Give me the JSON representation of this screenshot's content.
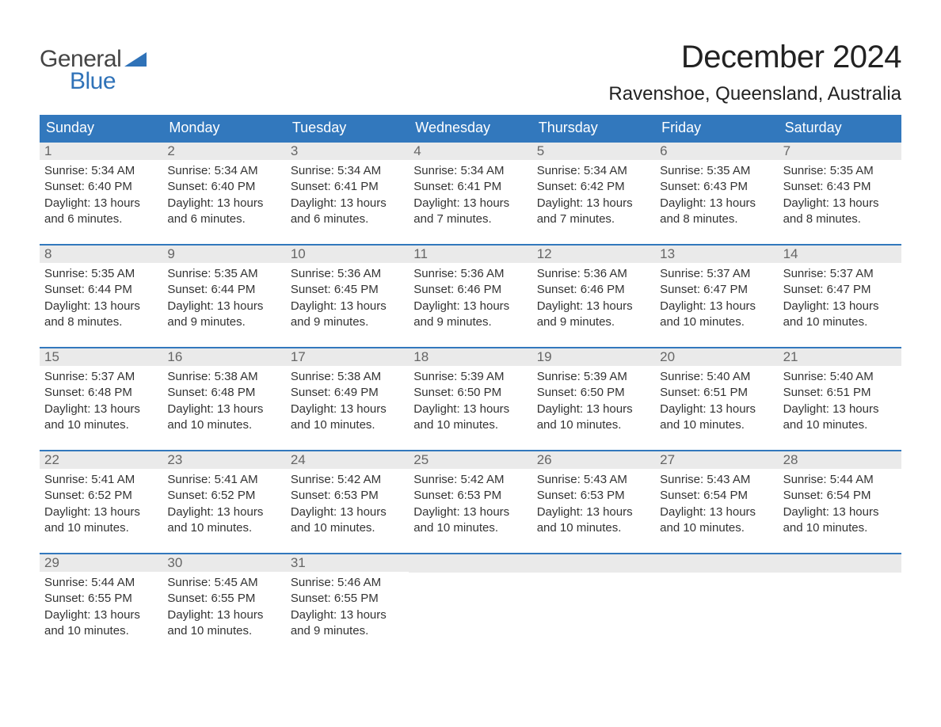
{
  "logo": {
    "word1": "General",
    "word2": "Blue",
    "word1_color": "#454545",
    "word2_color": "#2f72b8",
    "flag_color": "#2f72b8"
  },
  "title": "December 2024",
  "location": "Ravenshoe, Queensland, Australia",
  "colors": {
    "header_bg": "#3278bd",
    "header_text": "#ffffff",
    "daynum_bg": "#eaeaea",
    "daynum_text": "#666666",
    "body_text": "#333333",
    "row_border": "#3278bd",
    "page_bg": "#ffffff"
  },
  "typography": {
    "title_fontsize": 40,
    "location_fontsize": 24,
    "weekday_fontsize": 18,
    "daynum_fontsize": 17,
    "body_fontsize": 15
  },
  "weekdays": [
    "Sunday",
    "Monday",
    "Tuesday",
    "Wednesday",
    "Thursday",
    "Friday",
    "Saturday"
  ],
  "weeks": [
    [
      {
        "n": "1",
        "sunrise": "Sunrise: 5:34 AM",
        "sunset": "Sunset: 6:40 PM",
        "day1": "Daylight: 13 hours",
        "day2": "and 6 minutes."
      },
      {
        "n": "2",
        "sunrise": "Sunrise: 5:34 AM",
        "sunset": "Sunset: 6:40 PM",
        "day1": "Daylight: 13 hours",
        "day2": "and 6 minutes."
      },
      {
        "n": "3",
        "sunrise": "Sunrise: 5:34 AM",
        "sunset": "Sunset: 6:41 PM",
        "day1": "Daylight: 13 hours",
        "day2": "and 6 minutes."
      },
      {
        "n": "4",
        "sunrise": "Sunrise: 5:34 AM",
        "sunset": "Sunset: 6:41 PM",
        "day1": "Daylight: 13 hours",
        "day2": "and 7 minutes."
      },
      {
        "n": "5",
        "sunrise": "Sunrise: 5:34 AM",
        "sunset": "Sunset: 6:42 PM",
        "day1": "Daylight: 13 hours",
        "day2": "and 7 minutes."
      },
      {
        "n": "6",
        "sunrise": "Sunrise: 5:35 AM",
        "sunset": "Sunset: 6:43 PM",
        "day1": "Daylight: 13 hours",
        "day2": "and 8 minutes."
      },
      {
        "n": "7",
        "sunrise": "Sunrise: 5:35 AM",
        "sunset": "Sunset: 6:43 PM",
        "day1": "Daylight: 13 hours",
        "day2": "and 8 minutes."
      }
    ],
    [
      {
        "n": "8",
        "sunrise": "Sunrise: 5:35 AM",
        "sunset": "Sunset: 6:44 PM",
        "day1": "Daylight: 13 hours",
        "day2": "and 8 minutes."
      },
      {
        "n": "9",
        "sunrise": "Sunrise: 5:35 AM",
        "sunset": "Sunset: 6:44 PM",
        "day1": "Daylight: 13 hours",
        "day2": "and 9 minutes."
      },
      {
        "n": "10",
        "sunrise": "Sunrise: 5:36 AM",
        "sunset": "Sunset: 6:45 PM",
        "day1": "Daylight: 13 hours",
        "day2": "and 9 minutes."
      },
      {
        "n": "11",
        "sunrise": "Sunrise: 5:36 AM",
        "sunset": "Sunset: 6:46 PM",
        "day1": "Daylight: 13 hours",
        "day2": "and 9 minutes."
      },
      {
        "n": "12",
        "sunrise": "Sunrise: 5:36 AM",
        "sunset": "Sunset: 6:46 PM",
        "day1": "Daylight: 13 hours",
        "day2": "and 9 minutes."
      },
      {
        "n": "13",
        "sunrise": "Sunrise: 5:37 AM",
        "sunset": "Sunset: 6:47 PM",
        "day1": "Daylight: 13 hours",
        "day2": "and 10 minutes."
      },
      {
        "n": "14",
        "sunrise": "Sunrise: 5:37 AM",
        "sunset": "Sunset: 6:47 PM",
        "day1": "Daylight: 13 hours",
        "day2": "and 10 minutes."
      }
    ],
    [
      {
        "n": "15",
        "sunrise": "Sunrise: 5:37 AM",
        "sunset": "Sunset: 6:48 PM",
        "day1": "Daylight: 13 hours",
        "day2": "and 10 minutes."
      },
      {
        "n": "16",
        "sunrise": "Sunrise: 5:38 AM",
        "sunset": "Sunset: 6:48 PM",
        "day1": "Daylight: 13 hours",
        "day2": "and 10 minutes."
      },
      {
        "n": "17",
        "sunrise": "Sunrise: 5:38 AM",
        "sunset": "Sunset: 6:49 PM",
        "day1": "Daylight: 13 hours",
        "day2": "and 10 minutes."
      },
      {
        "n": "18",
        "sunrise": "Sunrise: 5:39 AM",
        "sunset": "Sunset: 6:50 PM",
        "day1": "Daylight: 13 hours",
        "day2": "and 10 minutes."
      },
      {
        "n": "19",
        "sunrise": "Sunrise: 5:39 AM",
        "sunset": "Sunset: 6:50 PM",
        "day1": "Daylight: 13 hours",
        "day2": "and 10 minutes."
      },
      {
        "n": "20",
        "sunrise": "Sunrise: 5:40 AM",
        "sunset": "Sunset: 6:51 PM",
        "day1": "Daylight: 13 hours",
        "day2": "and 10 minutes."
      },
      {
        "n": "21",
        "sunrise": "Sunrise: 5:40 AM",
        "sunset": "Sunset: 6:51 PM",
        "day1": "Daylight: 13 hours",
        "day2": "and 10 minutes."
      }
    ],
    [
      {
        "n": "22",
        "sunrise": "Sunrise: 5:41 AM",
        "sunset": "Sunset: 6:52 PM",
        "day1": "Daylight: 13 hours",
        "day2": "and 10 minutes."
      },
      {
        "n": "23",
        "sunrise": "Sunrise: 5:41 AM",
        "sunset": "Sunset: 6:52 PM",
        "day1": "Daylight: 13 hours",
        "day2": "and 10 minutes."
      },
      {
        "n": "24",
        "sunrise": "Sunrise: 5:42 AM",
        "sunset": "Sunset: 6:53 PM",
        "day1": "Daylight: 13 hours",
        "day2": "and 10 minutes."
      },
      {
        "n": "25",
        "sunrise": "Sunrise: 5:42 AM",
        "sunset": "Sunset: 6:53 PM",
        "day1": "Daylight: 13 hours",
        "day2": "and 10 minutes."
      },
      {
        "n": "26",
        "sunrise": "Sunrise: 5:43 AM",
        "sunset": "Sunset: 6:53 PM",
        "day1": "Daylight: 13 hours",
        "day2": "and 10 minutes."
      },
      {
        "n": "27",
        "sunrise": "Sunrise: 5:43 AM",
        "sunset": "Sunset: 6:54 PM",
        "day1": "Daylight: 13 hours",
        "day2": "and 10 minutes."
      },
      {
        "n": "28",
        "sunrise": "Sunrise: 5:44 AM",
        "sunset": "Sunset: 6:54 PM",
        "day1": "Daylight: 13 hours",
        "day2": "and 10 minutes."
      }
    ],
    [
      {
        "n": "29",
        "sunrise": "Sunrise: 5:44 AM",
        "sunset": "Sunset: 6:55 PM",
        "day1": "Daylight: 13 hours",
        "day2": "and 10 minutes."
      },
      {
        "n": "30",
        "sunrise": "Sunrise: 5:45 AM",
        "sunset": "Sunset: 6:55 PM",
        "day1": "Daylight: 13 hours",
        "day2": "and 10 minutes."
      },
      {
        "n": "31",
        "sunrise": "Sunrise: 5:46 AM",
        "sunset": "Sunset: 6:55 PM",
        "day1": "Daylight: 13 hours",
        "day2": "and 9 minutes."
      },
      null,
      null,
      null,
      null
    ]
  ]
}
